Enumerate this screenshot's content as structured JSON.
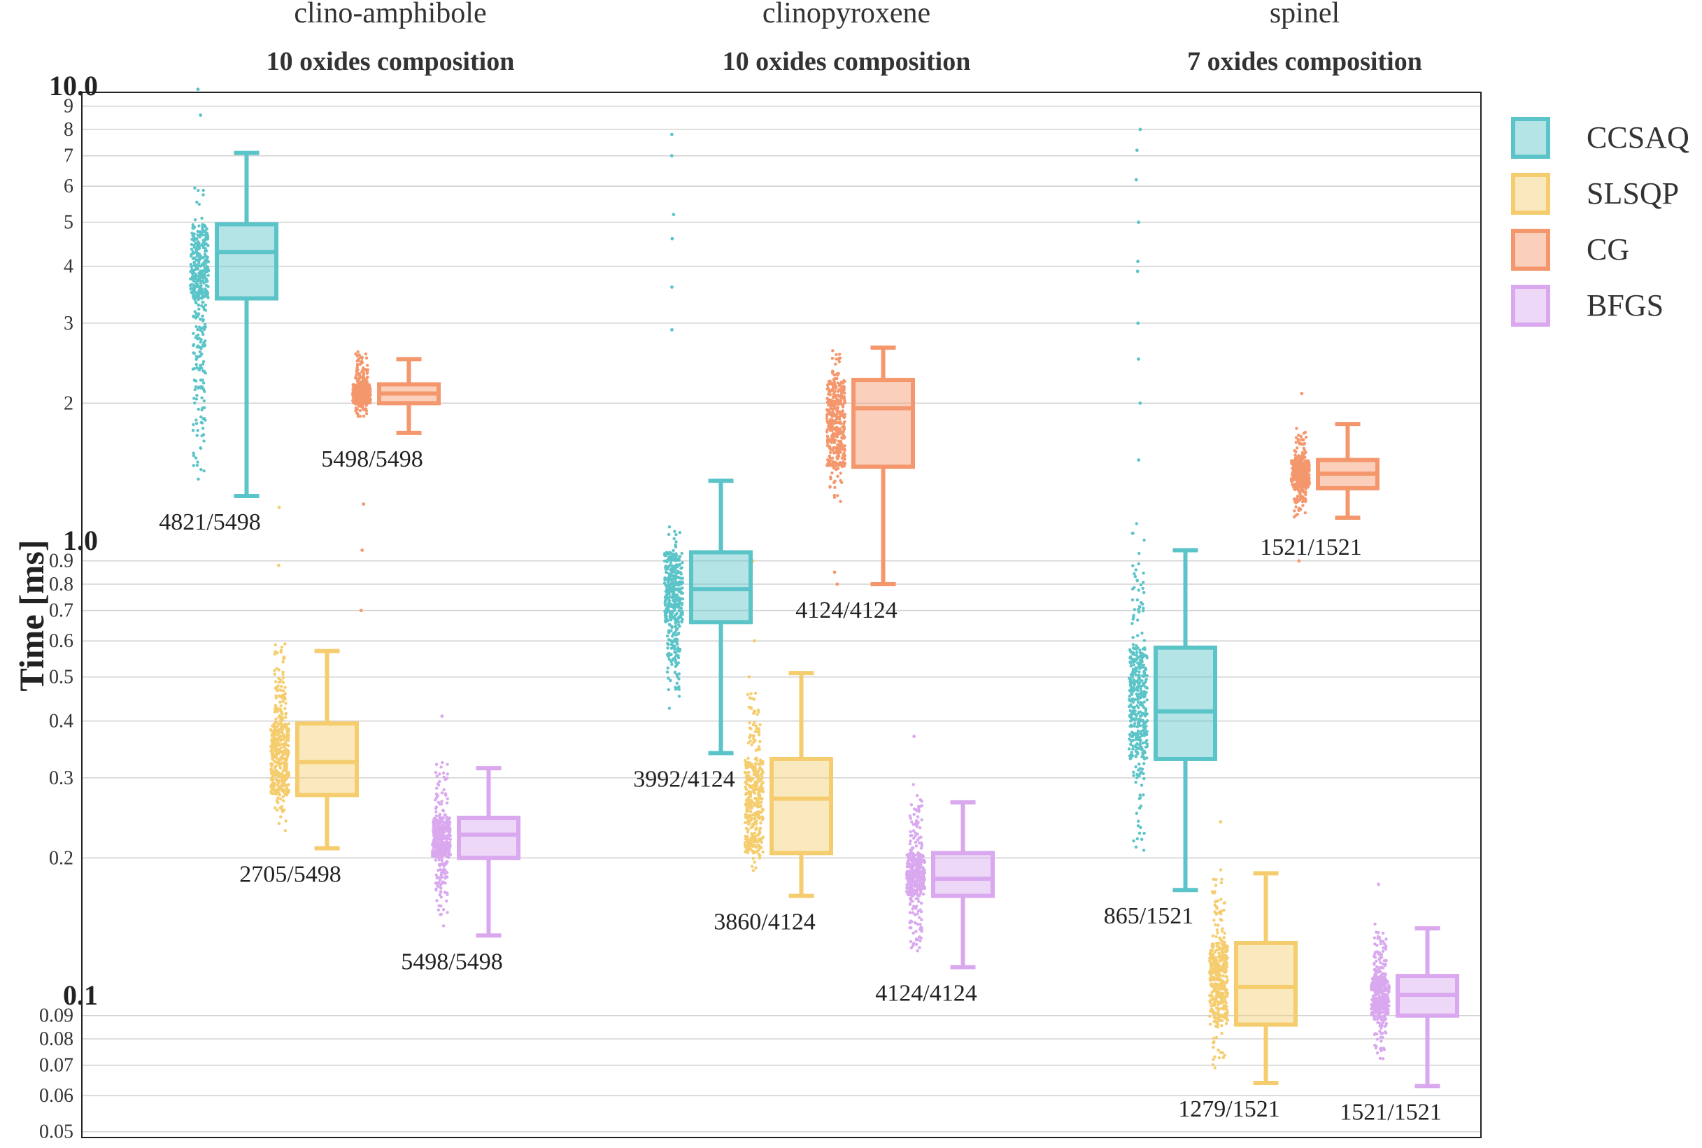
{
  "chart_data": {
    "type": "box",
    "ylabel": "Time [ms]",
    "yscale": "log",
    "ylim": [
      0.05,
      10.0
    ],
    "grid": true,
    "legend_position": "right",
    "major_tick_labels": [
      "10.0",
      "1.0",
      "0.1"
    ],
    "minor_tick_labels": [
      "9",
      "8",
      "7",
      "6",
      "5",
      "4",
      "3",
      "2",
      "0.9",
      "0.8",
      "0.7",
      "0.6",
      "0.5",
      "0.4",
      "0.3",
      "0.2",
      "0.09",
      "0.08",
      "0.07",
      "0.06",
      "0.05"
    ],
    "legend": [
      {
        "name": "CCSAQ",
        "color": "#5BC4C8"
      },
      {
        "name": "SLSQP",
        "color": "#F5CD6E"
      },
      {
        "name": "CG",
        "color": "#F4976C"
      },
      {
        "name": "BFGS",
        "color": "#D9A8EE"
      }
    ],
    "groups": [
      {
        "title": "clino-amphibole",
        "subtitle": "10 oxides composition",
        "boxes": [
          {
            "method": "CCSAQ",
            "min": 1.25,
            "q1": 3.4,
            "median": 4.3,
            "q3": 4.95,
            "max": 7.1,
            "pts_min": 1.27,
            "pts_max": 6.4,
            "outliers": [
              8.6,
              9.8
            ],
            "label": "4821/5498"
          },
          {
            "method": "SLSQP",
            "min": 0.21,
            "q1": 0.275,
            "median": 0.325,
            "q3": 0.395,
            "max": 0.57,
            "pts_min": 0.215,
            "pts_max": 0.64,
            "outliers": [
              0.88,
              1.18
            ],
            "label": "2705/5498"
          },
          {
            "method": "CG",
            "min": 1.72,
            "q1": 2.0,
            "median": 2.1,
            "q3": 2.2,
            "max": 2.5,
            "pts_min": 1.8,
            "pts_max": 2.6,
            "outliers": [
              1.2,
              0.95,
              0.7
            ],
            "label": "5498/5498"
          },
          {
            "method": "BFGS",
            "min": 0.135,
            "q1": 0.2,
            "median": 0.225,
            "q3": 0.245,
            "max": 0.315,
            "pts_min": 0.14,
            "pts_max": 0.34,
            "outliers": [
              0.41
            ],
            "label": "5498/5498"
          }
        ]
      },
      {
        "title": "clinopyroxene",
        "subtitle": "10 oxides composition",
        "boxes": [
          {
            "method": "CCSAQ",
            "min": 0.34,
            "q1": 0.66,
            "median": 0.78,
            "q3": 0.94,
            "max": 1.35,
            "pts_min": 0.42,
            "pts_max": 1.1,
            "outliers": [
              2.9,
              3.6,
              4.6,
              5.2,
              7.0,
              7.8
            ],
            "label": "3992/4124"
          },
          {
            "method": "SLSQP",
            "min": 0.165,
            "q1": 0.205,
            "median": 0.27,
            "q3": 0.33,
            "max": 0.51,
            "pts_min": 0.175,
            "pts_max": 0.52,
            "outliers": [
              0.6,
              0.9
            ],
            "label": "3860/4124"
          },
          {
            "method": "CG",
            "min": 0.8,
            "q1": 1.45,
            "median": 1.95,
            "q3": 2.25,
            "max": 2.65,
            "pts_min": 1.15,
            "pts_max": 2.65,
            "outliers": [
              0.8,
              0.85
            ],
            "label": "4124/4124"
          },
          {
            "method": "BFGS",
            "min": 0.115,
            "q1": 0.165,
            "median": 0.18,
            "q3": 0.205,
            "max": 0.265,
            "pts_min": 0.12,
            "pts_max": 0.3,
            "outliers": [
              0.37
            ],
            "label": "4124/4124"
          }
        ]
      },
      {
        "title": "spinel",
        "subtitle": "7 oxides composition",
        "boxes": [
          {
            "method": "CCSAQ",
            "min": 0.17,
            "q1": 0.33,
            "median": 0.42,
            "q3": 0.58,
            "max": 0.95,
            "pts_min": 0.18,
            "pts_max": 1.2,
            "outliers": [
              1.5,
              2.0,
              2.5,
              3.0,
              3.9,
              4.1,
              5.0,
              6.2,
              7.2,
              8.0
            ],
            "label": "865/1521"
          },
          {
            "method": "SLSQP",
            "min": 0.064,
            "q1": 0.086,
            "median": 0.104,
            "q3": 0.13,
            "max": 0.185,
            "pts_min": 0.066,
            "pts_max": 0.2,
            "outliers": [
              0.24
            ],
            "label": "1279/1521"
          },
          {
            "method": "CG",
            "min": 1.12,
            "q1": 1.3,
            "median": 1.4,
            "q3": 1.5,
            "max": 1.8,
            "pts_min": 1.1,
            "pts_max": 1.8,
            "outliers": [
              0.9,
              2.1
            ],
            "label": "1521/1521"
          },
          {
            "method": "BFGS",
            "min": 0.063,
            "q1": 0.09,
            "median": 0.1,
            "q3": 0.11,
            "max": 0.14,
            "pts_min": 0.066,
            "pts_max": 0.15,
            "outliers": [
              0.175
            ],
            "label": "1521/1521"
          }
        ]
      }
    ]
  }
}
